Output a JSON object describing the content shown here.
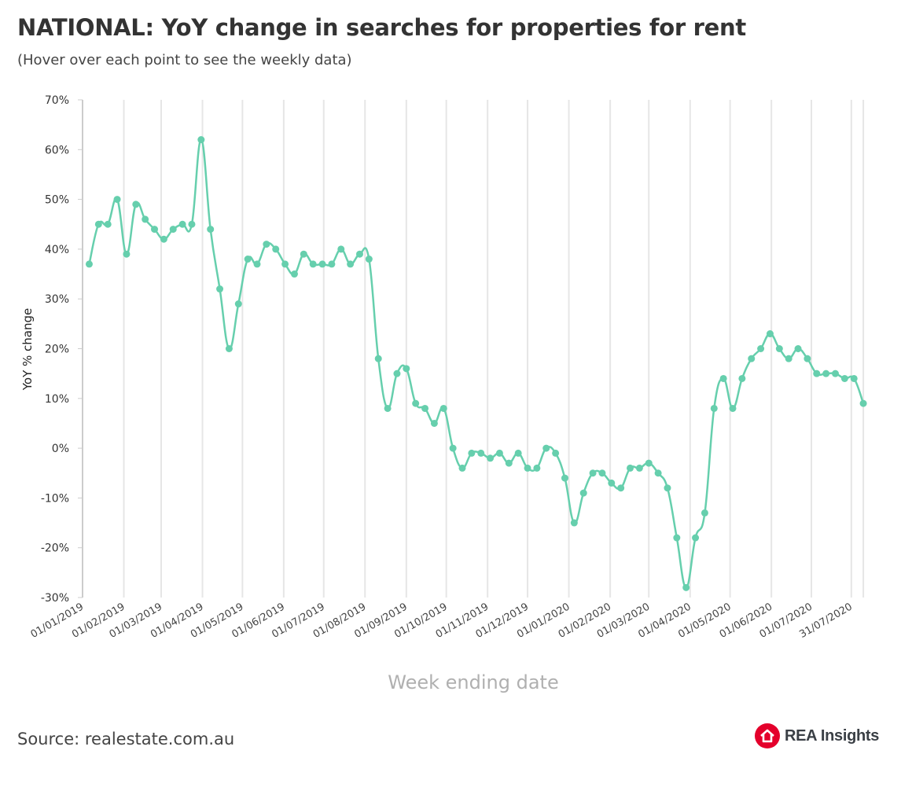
{
  "title": "NATIONAL: YoY change in searches for properties for rent",
  "subtitle": "(Hover over each point to see the weekly data)",
  "source": "Source: realestate.com.au",
  "logo": {
    "text": "REA Insights",
    "icon": "house-in-circle-icon",
    "color": "#e4002b"
  },
  "chart_data": {
    "type": "line",
    "xlabel": "Week ending date",
    "ylabel": "YoY % change",
    "ylim": [
      -30,
      70
    ],
    "yticks": [
      -30,
      -20,
      -10,
      0,
      10,
      20,
      30,
      40,
      50,
      60,
      70
    ],
    "ytick_labels": [
      "-30%",
      "-20%",
      "-10%",
      "0%",
      "10%",
      "20%",
      "30%",
      "40%",
      "50%",
      "60%",
      "70%"
    ],
    "xticks": [
      "2019-01-01",
      "2019-02-01",
      "2019-03-01",
      "2019-04-01",
      "2019-05-01",
      "2019-06-01",
      "2019-07-01",
      "2019-08-01",
      "2019-09-01",
      "2019-10-01",
      "2019-11-01",
      "2019-12-01",
      "2020-01-01",
      "2020-02-01",
      "2020-03-01",
      "2020-04-01",
      "2020-05-01",
      "2020-06-01",
      "2020-07-01",
      "2020-07-31"
    ],
    "xtick_labels": [
      "01/01/2019",
      "01/02/2019",
      "01/03/2019",
      "01/04/2019",
      "01/05/2019",
      "01/06/2019",
      "01/07/2019",
      "01/08/2019",
      "01/09/2019",
      "01/10/2019",
      "01/11/2019",
      "01/12/2019",
      "01/01/2020",
      "01/02/2020",
      "01/03/2020",
      "01/04/2020",
      "01/05/2020",
      "01/06/2020",
      "01/07/2020",
      "31/07/2020"
    ],
    "grid": "vertical",
    "line_color": "#66cfad",
    "series": [
      {
        "x": [
          "2019-01-06",
          "2019-01-13",
          "2019-01-20",
          "2019-01-27",
          "2019-02-03",
          "2019-02-10",
          "2019-02-17",
          "2019-02-24",
          "2019-03-03",
          "2019-03-10",
          "2019-03-17",
          "2019-03-24",
          "2019-03-31",
          "2019-04-07",
          "2019-04-14",
          "2019-04-21",
          "2019-04-28",
          "2019-05-05",
          "2019-05-12",
          "2019-05-19",
          "2019-05-26",
          "2019-06-02",
          "2019-06-09",
          "2019-06-16",
          "2019-06-23",
          "2019-06-30",
          "2019-07-07",
          "2019-07-14",
          "2019-07-21",
          "2019-07-28",
          "2019-08-04",
          "2019-08-11",
          "2019-08-18",
          "2019-08-25",
          "2019-09-01",
          "2019-09-08",
          "2019-09-15",
          "2019-09-22",
          "2019-09-29",
          "2019-10-06",
          "2019-10-13",
          "2019-10-20",
          "2019-10-27",
          "2019-11-03",
          "2019-11-10",
          "2019-11-17",
          "2019-11-24",
          "2019-12-01",
          "2019-12-08",
          "2019-12-15",
          "2019-12-22",
          "2019-12-29",
          "2020-01-05",
          "2020-01-12",
          "2020-01-19",
          "2020-01-26",
          "2020-02-02",
          "2020-02-09",
          "2020-02-16",
          "2020-02-23",
          "2020-03-01",
          "2020-03-08",
          "2020-03-15",
          "2020-03-22",
          "2020-03-29",
          "2020-04-05",
          "2020-04-12",
          "2020-04-19",
          "2020-04-26",
          "2020-05-03",
          "2020-05-10",
          "2020-05-17",
          "2020-05-24",
          "2020-05-31",
          "2020-06-07",
          "2020-06-14",
          "2020-06-21",
          "2020-06-28",
          "2020-07-05",
          "2020-07-12",
          "2020-07-19",
          "2020-07-26",
          "2020-08-02",
          "2020-08-09"
        ],
        "y": [
          37,
          45,
          45,
          50,
          39,
          49,
          46,
          44,
          42,
          44,
          45,
          45,
          62,
          44,
          32,
          20,
          29,
          38,
          37,
          41,
          40,
          37,
          35,
          39,
          37,
          37,
          37,
          40,
          37,
          39,
          38,
          18,
          8,
          15,
          16,
          9,
          8,
          5,
          8,
          0,
          -4,
          -1,
          -1,
          -2,
          -1,
          -3,
          -1,
          -4,
          -4,
          0,
          -1,
          -6,
          -15,
          -9,
          -5,
          -5,
          -7,
          -8,
          -4,
          -4,
          -3,
          -5,
          -8,
          -18,
          -28,
          -18,
          -13,
          8,
          14,
          8,
          14,
          18,
          20,
          23,
          20,
          18,
          20,
          18,
          15,
          15,
          15,
          14,
          14,
          9
        ]
      }
    ]
  }
}
